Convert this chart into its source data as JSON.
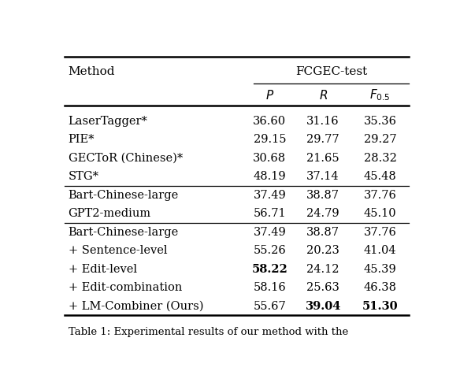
{
  "title": "FCGEC-test",
  "rows": [
    {
      "method": "LaserTagger*",
      "P": "36.60",
      "R": "31.16",
      "F": "35.36",
      "bold": []
    },
    {
      "method": "PIE*",
      "P": "29.15",
      "R": "29.77",
      "F": "29.27",
      "bold": []
    },
    {
      "method": "GECToR (Chinese)*",
      "P": "30.68",
      "R": "21.65",
      "F": "28.32",
      "bold": []
    },
    {
      "method": "STG*",
      "P": "48.19",
      "R": "37.14",
      "F": "45.48",
      "bold": []
    },
    {
      "method": "Bart-Chinese-large",
      "P": "37.49",
      "R": "38.87",
      "F": "37.76",
      "bold": []
    },
    {
      "method": "GPT2-medium",
      "P": "56.71",
      "R": "24.79",
      "F": "45.10",
      "bold": []
    },
    {
      "method": "Bart-Chinese-large",
      "P": "37.49",
      "R": "38.87",
      "F": "37.76",
      "bold": []
    },
    {
      "method": "+ Sentence-level",
      "P": "55.26",
      "R": "20.23",
      "F": "41.04",
      "bold": []
    },
    {
      "method": "+ Edit-level",
      "P": "58.22",
      "R": "24.12",
      "F": "45.39",
      "bold": [
        "P"
      ]
    },
    {
      "method": "+ Edit-combination",
      "P": "58.16",
      "R": "25.63",
      "F": "46.38",
      "bold": []
    },
    {
      "method": "+ LM-Combiner (Ours)",
      "P": "55.67",
      "R": "39.04",
      "F": "51.30",
      "bold": [
        "R",
        "F"
      ]
    }
  ],
  "section_breaks_after": [
    3,
    5
  ],
  "bg_color": "#ffffff",
  "text_color": "#000000",
  "font_size": 10.5,
  "caption": "Table 1: Experimental results of our method with the"
}
